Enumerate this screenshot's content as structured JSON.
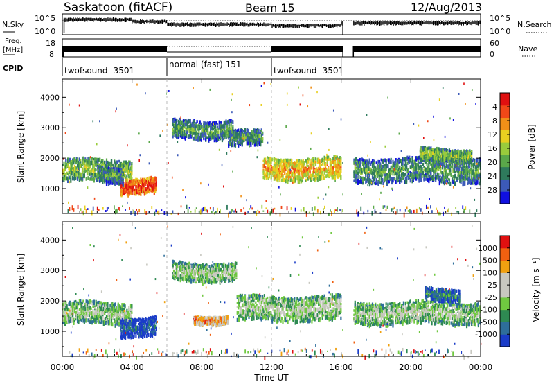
{
  "header": {
    "station": "Saskatoon (fitACF)",
    "beam": "Beam 15",
    "date": "12/Aug/2013"
  },
  "noise_panel": {
    "left_label": "N.Sky",
    "right_label": "N.Search",
    "tick_top": "10^5",
    "tick_bottom": "10^0"
  },
  "freq_panel": {
    "left_label_1": "Freq.",
    "left_label_2": "[MHz]",
    "tick_top": "18",
    "tick_bottom": "8",
    "right_label": "Nave",
    "right_tick_top": "60",
    "right_tick_bottom": "0"
  },
  "cpid": {
    "label": "CPID",
    "segments": [
      {
        "name": "twofsound -3501",
        "start_h": 0,
        "end_h": 6
      },
      {
        "name": "normal (fast) 151",
        "start_h": 6,
        "end_h": 12
      },
      {
        "name": "twofsound -3501",
        "start_h": 12,
        "end_h": 16
      }
    ]
  },
  "chart_data": [
    {
      "type": "heatmap",
      "title": "",
      "xlabel": "",
      "ylabel": "Slant Range [km]",
      "xlim": [
        0,
        24
      ],
      "ylim": [
        180,
        4600
      ],
      "x_ticks": [
        0,
        4,
        8,
        12,
        16,
        20,
        24
      ],
      "y_ticks": [
        1000,
        2000,
        3000,
        4000
      ],
      "colorbar": {
        "label": "Power [dB]",
        "ticks": [
          "4",
          "8",
          "12",
          "16",
          "20",
          "24",
          "28"
        ],
        "colors": [
          "#1010e0",
          "#3c5ab8",
          "#2e7a5c",
          "#5aa84a",
          "#9acc3c",
          "#e8d020",
          "#f09018",
          "#f04818",
          "#e01010"
        ]
      },
      "data_gap_hours": [
        16.1,
        16.7
      ],
      "scatter_regions": [
        {
          "t0": 0.0,
          "t1": 4.0,
          "r_mid": 1650,
          "r_half": 350,
          "level": 4
        },
        {
          "t0": 3.3,
          "t1": 5.4,
          "r_mid": 1150,
          "r_half": 250,
          "level": 8
        },
        {
          "t0": 2.0,
          "t1": 3.5,
          "r_mid": 1500,
          "r_half": 250,
          "level": 3
        },
        {
          "t0": 6.3,
          "t1": 9.8,
          "r_mid": 3000,
          "r_half": 300,
          "level": 3
        },
        {
          "t0": 9.5,
          "t1": 11.5,
          "r_mid": 2700,
          "r_half": 250,
          "level": 3
        },
        {
          "t0": 11.5,
          "t1": 16.0,
          "r_mid": 1700,
          "r_half": 350,
          "level": 6
        },
        {
          "t0": 16.7,
          "t1": 24.0,
          "r_mid": 1650,
          "r_half": 400,
          "level": 3
        },
        {
          "t0": 20.5,
          "t1": 23.5,
          "r_mid": 2150,
          "r_half": 200,
          "level": 4
        }
      ]
    },
    {
      "type": "heatmap",
      "title": "",
      "xlabel": "Time UT",
      "ylabel": "Slant Range [km]",
      "xlim": [
        0,
        24
      ],
      "ylim": [
        180,
        4600
      ],
      "x_ticks": [
        0,
        4,
        8,
        12,
        16,
        20,
        24
      ],
      "x_tick_labels": [
        "00:00",
        "04:00",
        "08:00",
        "12:00",
        "16:00",
        "20:00",
        "00:00"
      ],
      "y_ticks": [
        1000,
        2000,
        3000,
        4000
      ],
      "colorbar": {
        "label": "Velocity [m s⁻¹]",
        "ticks": [
          "1000",
          "500",
          "100",
          "25",
          "-25",
          "-100",
          "-500",
          "-1000"
        ],
        "colors": [
          "#1a3cc8",
          "#2e6e9a",
          "#2e8a52",
          "#70c840",
          "#c8c8c0",
          "#c8c8c0",
          "#f0a010",
          "#f06010",
          "#e01010"
        ]
      },
      "data_gap_hours": [
        16.1,
        16.7
      ],
      "scatter_regions": [
        {
          "t0": 0.0,
          "t1": 4.0,
          "r_mid": 1650,
          "r_half": 350,
          "level": 4
        },
        {
          "t0": 3.3,
          "t1": 5.4,
          "r_mid": 1200,
          "r_half": 300,
          "level": 1
        },
        {
          "t0": 7.5,
          "t1": 9.5,
          "r_mid": 1450,
          "r_half": 120,
          "level": 7
        },
        {
          "t0": 6.3,
          "t1": 10.0,
          "r_mid": 3000,
          "r_half": 300,
          "level": 4
        },
        {
          "t0": 10.0,
          "t1": 16.0,
          "r_mid": 1800,
          "r_half": 400,
          "level": 4
        },
        {
          "t0": 16.7,
          "t1": 24.0,
          "r_mid": 1650,
          "r_half": 350,
          "level": 4
        },
        {
          "t0": 20.8,
          "t1": 22.8,
          "r_mid": 2250,
          "r_half": 200,
          "level": 2
        }
      ]
    }
  ]
}
